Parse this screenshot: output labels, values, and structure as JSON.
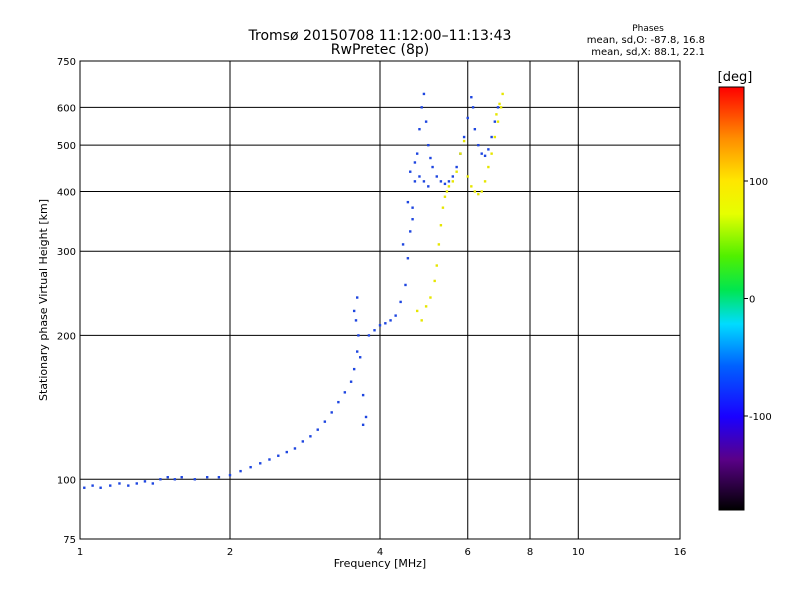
{
  "chart_data": {
    "type": "scatter",
    "title": "Tromsø 20150708 11:12:00–11:13:43",
    "subtitle": "RwPretec (8p)",
    "xlabel": "Frequency [MHz]",
    "ylabel": "Stationary phase Virtual Height [km]",
    "x_scale": "log",
    "y_scale": "log",
    "xlim": [
      1,
      16
    ],
    "ylim": [
      75,
      750
    ],
    "x_ticks": [
      1,
      2,
      4,
      6,
      8,
      10,
      16
    ],
    "x_tick_labels": [
      "1",
      "2",
      "4",
      "6",
      "8",
      "10",
      "16"
    ],
    "y_ticks": [
      75,
      100,
      200,
      300,
      400,
      500,
      600,
      750
    ],
    "y_tick_labels": [
      "75",
      "100",
      "200",
      "300",
      "400",
      "500",
      "600",
      "750"
    ],
    "grid": true,
    "phases_box": {
      "title": "Phases",
      "line1": "mean, sd,O: -87.8, 16.8",
      "line2": "mean, sd,X: 88.1, 22.1"
    },
    "colorbar": {
      "label": "[deg]",
      "range": [
        -180,
        180
      ],
      "ticks": [
        100,
        0,
        -100
      ],
      "tick_labels": [
        "100",
        "0",
        "-100"
      ]
    },
    "series": [
      {
        "name": "O",
        "color": "#1e46e0",
        "points": [
          [
            1.02,
            96
          ],
          [
            1.06,
            97
          ],
          [
            1.1,
            96
          ],
          [
            1.15,
            97
          ],
          [
            1.2,
            98
          ],
          [
            1.25,
            97
          ],
          [
            1.3,
            98
          ],
          [
            1.35,
            99
          ],
          [
            1.4,
            98
          ],
          [
            1.45,
            100
          ],
          [
            1.5,
            101
          ],
          [
            1.55,
            100
          ],
          [
            1.6,
            101
          ],
          [
            1.7,
            100
          ],
          [
            1.8,
            101
          ],
          [
            1.9,
            101
          ],
          [
            2.0,
            102
          ],
          [
            2.1,
            104
          ],
          [
            2.2,
            106
          ],
          [
            2.3,
            108
          ],
          [
            2.4,
            110
          ],
          [
            2.5,
            112
          ],
          [
            2.6,
            114
          ],
          [
            2.7,
            116
          ],
          [
            2.8,
            120
          ],
          [
            2.9,
            123
          ],
          [
            3.0,
            127
          ],
          [
            3.1,
            132
          ],
          [
            3.2,
            138
          ],
          [
            3.3,
            145
          ],
          [
            3.4,
            152
          ],
          [
            3.5,
            160
          ],
          [
            3.55,
            170
          ],
          [
            3.6,
            185
          ],
          [
            3.62,
            200
          ],
          [
            3.58,
            215
          ],
          [
            3.55,
            225
          ],
          [
            3.6,
            240
          ],
          [
            3.65,
            180
          ],
          [
            3.7,
            150
          ],
          [
            3.75,
            135
          ],
          [
            3.7,
            130
          ],
          [
            3.8,
            200
          ],
          [
            3.9,
            205
          ],
          [
            4.0,
            210
          ],
          [
            4.1,
            212
          ],
          [
            4.2,
            215
          ],
          [
            4.3,
            220
          ],
          [
            4.4,
            235
          ],
          [
            4.5,
            255
          ],
          [
            4.55,
            290
          ],
          [
            4.6,
            330
          ],
          [
            4.65,
            370
          ],
          [
            4.7,
            420
          ],
          [
            4.75,
            480
          ],
          [
            4.8,
            540
          ],
          [
            4.85,
            600
          ],
          [
            4.9,
            640
          ],
          [
            4.95,
            560
          ],
          [
            5.0,
            500
          ],
          [
            5.05,
            470
          ],
          [
            5.1,
            450
          ],
          [
            5.2,
            430
          ],
          [
            5.3,
            420
          ],
          [
            5.4,
            415
          ],
          [
            5.5,
            420
          ],
          [
            5.6,
            430
          ],
          [
            5.7,
            450
          ],
          [
            5.8,
            480
          ],
          [
            5.9,
            520
          ],
          [
            6.0,
            570
          ],
          [
            6.1,
            630
          ],
          [
            6.15,
            600
          ],
          [
            6.2,
            540
          ],
          [
            6.3,
            500
          ],
          [
            6.4,
            480
          ],
          [
            6.5,
            475
          ],
          [
            6.6,
            490
          ],
          [
            6.7,
            520
          ],
          [
            6.8,
            560
          ],
          [
            6.9,
            600
          ],
          [
            4.6,
            440
          ],
          [
            4.7,
            460
          ],
          [
            4.8,
            430
          ],
          [
            4.9,
            420
          ],
          [
            5.0,
            410
          ],
          [
            4.55,
            380
          ],
          [
            4.65,
            350
          ],
          [
            4.45,
            310
          ]
        ]
      },
      {
        "name": "X",
        "color": "#e6e600",
        "points": [
          [
            4.75,
            225
          ],
          [
            4.85,
            215
          ],
          [
            4.95,
            230
          ],
          [
            5.05,
            240
          ],
          [
            5.15,
            260
          ],
          [
            5.2,
            280
          ],
          [
            5.25,
            310
          ],
          [
            5.3,
            340
          ],
          [
            5.35,
            370
          ],
          [
            5.4,
            390
          ],
          [
            5.45,
            400
          ],
          [
            5.5,
            410
          ],
          [
            5.6,
            420
          ],
          [
            5.7,
            440
          ],
          [
            5.8,
            480
          ],
          [
            5.9,
            510
          ],
          [
            6.0,
            430
          ],
          [
            6.1,
            410
          ],
          [
            6.2,
            400
          ],
          [
            6.3,
            395
          ],
          [
            6.4,
            400
          ],
          [
            6.5,
            420
          ],
          [
            6.6,
            450
          ],
          [
            6.7,
            480
          ],
          [
            6.8,
            520
          ],
          [
            6.9,
            560
          ],
          [
            7.0,
            600
          ],
          [
            7.05,
            640
          ],
          [
            6.95,
            610
          ],
          [
            6.85,
            580
          ]
        ]
      }
    ]
  }
}
